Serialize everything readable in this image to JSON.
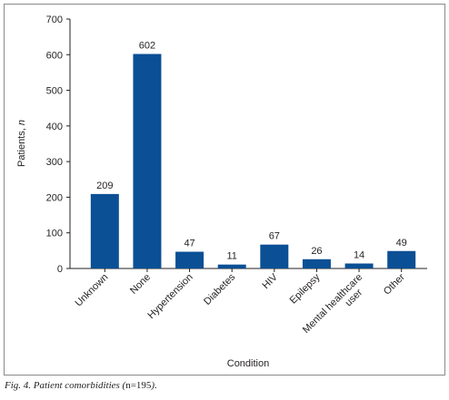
{
  "chart_data": {
    "type": "bar",
    "categories": [
      "Unknown",
      "None",
      "Hypertension",
      "Diabetes",
      "HIV",
      "Epilepsy",
      "Mental healthcare user",
      "Other"
    ],
    "category_lines": [
      [
        "Unknown"
      ],
      [
        "None"
      ],
      [
        "Hypertension"
      ],
      [
        "Diabetes"
      ],
      [
        "HIV"
      ],
      [
        "Epilepsy"
      ],
      [
        "Mental healthcare",
        "user"
      ],
      [
        "Other"
      ]
    ],
    "values": [
      209,
      602,
      47,
      11,
      67,
      26,
      14,
      49
    ],
    "xlabel": "Condition",
    "ylabel": "Patients, ",
    "ylabel_italic": "n",
    "ylim": [
      0,
      700
    ],
    "yticks": [
      0,
      100,
      200,
      300,
      400,
      500,
      600,
      700
    ],
    "grid": false,
    "bar_color": "#0b4f95"
  },
  "caption": {
    "figure": "Fig. 4. Patient comorbidities (",
    "n": "n=195",
    "tail": ")."
  }
}
